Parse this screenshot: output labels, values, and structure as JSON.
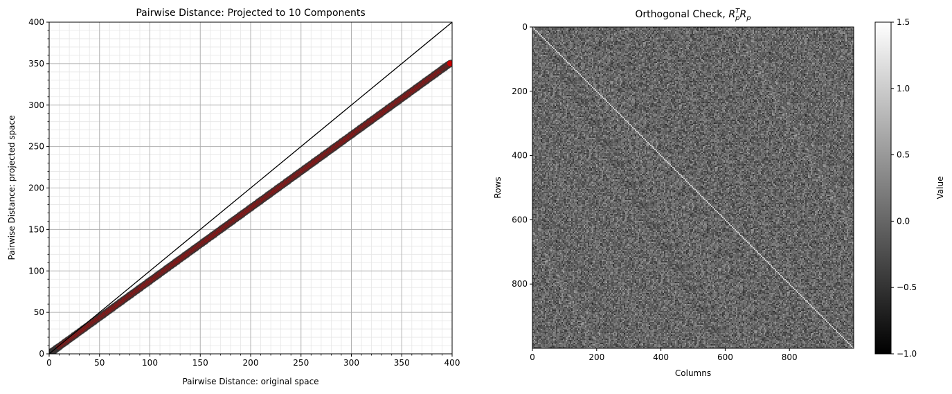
{
  "chart_data": [
    {
      "type": "scatter",
      "title": "Pairwise Distance: Projected to 10 Components",
      "xlabel": "Pairwise Distance: original space",
      "ylabel": "Pairwise Distance: projected space",
      "xlim": [
        0,
        400
      ],
      "ylim": [
        0,
        400
      ],
      "xticks": [
        "0",
        "50",
        "100",
        "150",
        "200",
        "250",
        "300",
        "350",
        "400"
      ],
      "yticks": [
        "0",
        "50",
        "100",
        "150",
        "200",
        "250",
        "300",
        "350",
        "400"
      ],
      "grid": true,
      "minor_grid": true,
      "reference_line": {
        "x": [
          0,
          400
        ],
        "y": [
          0,
          400
        ],
        "color": "#000000"
      },
      "series": [
        {
          "marker_color": "#cc0000",
          "edge_color": "#333333",
          "x": [
            2,
            5,
            10,
            20,
            30,
            40,
            50,
            60,
            70,
            80,
            90,
            100,
            110,
            120,
            130,
            140,
            150,
            160,
            170,
            180,
            190,
            200,
            210,
            220,
            230,
            240,
            250,
            260,
            270,
            280,
            290,
            300,
            310,
            320,
            330,
            340,
            350,
            360,
            370,
            380,
            390,
            398
          ],
          "y": [
            1.8,
            4.4,
            8.8,
            17.6,
            26.4,
            35.2,
            44,
            52.8,
            61.6,
            70.4,
            79.2,
            88,
            96.8,
            105.6,
            114.4,
            123.2,
            132,
            140.8,
            149.6,
            158.4,
            167.2,
            176,
            184.8,
            193.6,
            202.4,
            211.2,
            220,
            228.8,
            237.6,
            246.4,
            255.2,
            264,
            272.8,
            281.6,
            290.4,
            299.2,
            308,
            316.8,
            325.6,
            334.4,
            343.2,
            350.2
          ]
        }
      ]
    },
    {
      "type": "heatmap",
      "title_main": "Orthogonal Check, ",
      "title_math": "R",
      "title_sup": "T",
      "title_sub": "p",
      "title_math2": "R",
      "title_sub2": "p",
      "xlabel": "Columns",
      "ylabel": "Rows",
      "shape": [
        1000,
        1000
      ],
      "xticks": [
        "0",
        "200",
        "400",
        "600",
        "800"
      ],
      "xtick_values": [
        0,
        200,
        400,
        600,
        800
      ],
      "yticks": [
        "0",
        "200",
        "400",
        "600",
        "800"
      ],
      "ytick_values": [
        0,
        200,
        400,
        600,
        800
      ],
      "colormap": "gray",
      "diagonal_value": 1.0,
      "colorbar": {
        "label": "Value",
        "range": [
          -1.0,
          1.5
        ],
        "ticks": [
          "−1.0",
          "−0.5",
          "0.0",
          "0.5",
          "1.0",
          "1.5"
        ],
        "tick_values": [
          -1.0,
          -0.5,
          0.0,
          0.5,
          1.0,
          1.5
        ]
      }
    }
  ]
}
